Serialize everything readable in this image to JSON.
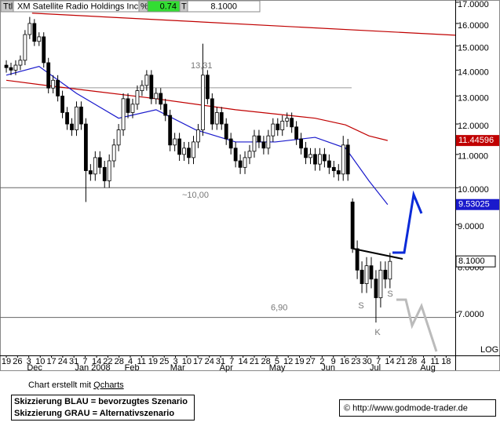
{
  "header": {
    "symbol_tag": "Ttl",
    "name": "XM Satellite Radio Holdings Inc.",
    "pct_tag": "%",
    "pct": 0.74,
    "last_tag": "T"
  },
  "chart_data": {
    "type": "candlestick",
    "log_scale": true,
    "scale_label": "LOG",
    "xlim": [
      -2.7,
      191.9
    ],
    "ylim": [
      6.19,
      17.11
    ],
    "yticks": [
      {
        "value": 7,
        "label": "7.0000"
      },
      {
        "value": 8,
        "label": "8.0000"
      },
      {
        "value": 9,
        "label": "9.0000"
      },
      {
        "value": 10,
        "label": "10.0000"
      },
      {
        "value": 11,
        "label": "11.0000"
      },
      {
        "value": 12,
        "label": "12.0000"
      },
      {
        "value": 13,
        "label": "13.0000"
      },
      {
        "value": 14,
        "label": "14.0000"
      },
      {
        "value": 15,
        "label": "15.0000"
      },
      {
        "value": 16,
        "label": "16.0000"
      },
      {
        "value": 17,
        "label": "17.0000"
      }
    ],
    "xticks": [
      {
        "value": 0,
        "label": "19"
      },
      {
        "value": 4.8,
        "label": "26"
      },
      {
        "value": 9.6,
        "label": "3"
      },
      {
        "value": 14.5,
        "label": "10"
      },
      {
        "value": 19.3,
        "label": "17"
      },
      {
        "value": 24.1,
        "label": "24"
      },
      {
        "value": 28.9,
        "label": "31"
      },
      {
        "value": 33.7,
        "label": "7"
      },
      {
        "value": 38.6,
        "label": "14"
      },
      {
        "value": 43.4,
        "label": "22"
      },
      {
        "value": 48.2,
        "label": "28"
      },
      {
        "value": 53,
        "label": "4"
      },
      {
        "value": 57.8,
        "label": "11"
      },
      {
        "value": 62.7,
        "label": "19"
      },
      {
        "value": 67.5,
        "label": "25"
      },
      {
        "value": 72.3,
        "label": "3"
      },
      {
        "value": 77.1,
        "label": "10"
      },
      {
        "value": 81.9,
        "label": "17"
      },
      {
        "value": 86.8,
        "label": "24"
      },
      {
        "value": 91.6,
        "label": "31"
      },
      {
        "value": 96.4,
        "label": "7"
      },
      {
        "value": 101.2,
        "label": "14"
      },
      {
        "value": 106,
        "label": "21"
      },
      {
        "value": 110.9,
        "label": "28"
      },
      {
        "value": 115.7,
        "label": "5"
      },
      {
        "value": 120.5,
        "label": "12"
      },
      {
        "value": 125.3,
        "label": "19"
      },
      {
        "value": 130.1,
        "label": "27"
      },
      {
        "value": 135,
        "label": "2"
      },
      {
        "value": 139.8,
        "label": "9"
      },
      {
        "value": 144.6,
        "label": "16"
      },
      {
        "value": 149.4,
        "label": "23"
      },
      {
        "value": 154.2,
        "label": "30"
      },
      {
        "value": 159.1,
        "label": "7"
      },
      {
        "value": 163.9,
        "label": "14"
      },
      {
        "value": 168.7,
        "label": "21"
      },
      {
        "value": 173.5,
        "label": "28"
      },
      {
        "value": 178.3,
        "label": "4"
      },
      {
        "value": 183.2,
        "label": "11"
      },
      {
        "value": 188,
        "label": "18"
      }
    ],
    "months": [
      {
        "value": 12.1,
        "label": "Dec"
      },
      {
        "value": 36.9,
        "label": "Jan 2008"
      },
      {
        "value": 53.7,
        "label": "Feb"
      },
      {
        "value": 73.2,
        "label": "Mar"
      },
      {
        "value": 94,
        "label": "Apr"
      },
      {
        "value": 115.8,
        "label": "May"
      },
      {
        "value": 137.6,
        "label": "Jun"
      },
      {
        "value": 157.7,
        "label": "Jul"
      },
      {
        "value": 180.2,
        "label": "Aug"
      }
    ],
    "candles": {
      "x": [
        0,
        2,
        4,
        6,
        8,
        10,
        12,
        14,
        16,
        18,
        20,
        22,
        24,
        26,
        28,
        30,
        32,
        34,
        36,
        38,
        40,
        42,
        44,
        46,
        48,
        50,
        52,
        54,
        56,
        58,
        60,
        62,
        64,
        66,
        68,
        70,
        72,
        74,
        76,
        78,
        80,
        82,
        84,
        86,
        88,
        90,
        92,
        94,
        96,
        98,
        100,
        102,
        104,
        106,
        108,
        110,
        112,
        114,
        116,
        118,
        120,
        122,
        124,
        126,
        128,
        130,
        132,
        134,
        136,
        138,
        140,
        142,
        144,
        146,
        148,
        150,
        152,
        154,
        156,
        158,
        160,
        162,
        164
      ],
      "open": [
        14.2,
        14.1,
        14.0,
        14.2,
        14.4,
        15.5,
        16.0,
        15.2,
        15.4,
        14.3,
        13.3,
        13.6,
        13.0,
        12.4,
        12.0,
        11.8,
        12.6,
        12.0,
        10.5,
        10.4,
        10.9,
        10.6,
        10.2,
        10.8,
        11.3,
        11.8,
        12.9,
        12.4,
        12.7,
        13.2,
        13.4,
        13.8,
        12.9,
        13.1,
        12.7,
        12.3,
        11.3,
        11.5,
        11.0,
        11.2,
        10.9,
        11.4,
        11.8,
        13.8,
        12.9,
        12.0,
        12.4,
        12.0,
        11.5,
        11.2,
        10.8,
        10.6,
        10.9,
        11.1,
        11.6,
        11.4,
        11.2,
        11.6,
        12.0,
        11.8,
        12.1,
        12.2,
        11.9,
        11.5,
        11.2,
        10.9,
        11.0,
        10.7,
        11.0,
        10.8,
        10.6,
        10.5,
        10.4,
        11.3,
        9.6,
        8.4,
        7.9,
        7.6,
        8.0,
        7.7,
        7.3,
        7.9,
        7.7
      ],
      "high": [
        14.4,
        14.3,
        14.4,
        14.6,
        15.7,
        16.3,
        16.2,
        15.6,
        15.6,
        14.5,
        13.8,
        13.8,
        13.2,
        12.6,
        12.2,
        12.8,
        12.8,
        12.2,
        10.7,
        11.1,
        11.1,
        10.8,
        11.0,
        11.5,
        12.0,
        13.1,
        13.1,
        12.9,
        13.4,
        13.6,
        14.0,
        14.0,
        13.3,
        13.3,
        12.9,
        12.5,
        11.7,
        11.7,
        11.4,
        11.4,
        11.6,
        12.0,
        15.1,
        14.0,
        13.1,
        12.6,
        12.6,
        12.2,
        11.7,
        11.4,
        11.0,
        11.1,
        11.3,
        11.8,
        11.8,
        11.6,
        11.8,
        12.2,
        12.2,
        12.3,
        12.4,
        12.4,
        12.1,
        11.7,
        11.4,
        11.2,
        11.2,
        11.2,
        11.2,
        11.0,
        10.8,
        10.7,
        11.6,
        11.5,
        9.7,
        8.6,
        8.1,
        8.2,
        8.2,
        7.9,
        8.1,
        8.1,
        8.3
      ],
      "low": [
        13.9,
        13.8,
        13.8,
        14.0,
        14.2,
        15.3,
        15.0,
        15.0,
        14.1,
        13.1,
        13.1,
        12.8,
        12.2,
        11.8,
        11.6,
        11.6,
        11.8,
        9.6,
        10.2,
        10.2,
        10.4,
        10.0,
        10.0,
        10.6,
        11.1,
        11.6,
        12.2,
        12.2,
        12.5,
        13.0,
        13.2,
        12.7,
        12.7,
        12.5,
        12.1,
        11.1,
        11.1,
        10.8,
        10.8,
        10.7,
        10.7,
        11.2,
        11.6,
        12.7,
        11.8,
        11.8,
        11.8,
        11.3,
        11.0,
        10.6,
        10.4,
        10.4,
        10.7,
        10.9,
        11.2,
        11.0,
        11.0,
        11.4,
        11.6,
        11.6,
        11.9,
        11.7,
        11.3,
        11.0,
        10.7,
        10.7,
        10.5,
        10.5,
        10.6,
        10.4,
        10.3,
        10.2,
        10.2,
        10.2,
        8.3,
        7.7,
        7.4,
        7.4,
        7.5,
        6.8,
        7.1,
        7.5,
        7.5
      ],
      "close": [
        14.1,
        14.0,
        14.2,
        14.4,
        15.5,
        16.0,
        15.2,
        15.4,
        14.3,
        13.3,
        13.6,
        13.0,
        12.4,
        12.0,
        11.8,
        12.6,
        12.0,
        10.5,
        10.4,
        10.9,
        10.6,
        10.2,
        10.8,
        11.3,
        11.8,
        12.9,
        12.4,
        12.7,
        13.2,
        13.4,
        13.8,
        12.9,
        13.1,
        12.7,
        12.3,
        11.3,
        11.5,
        11.0,
        11.2,
        10.9,
        11.4,
        11.8,
        13.8,
        12.9,
        12.0,
        12.4,
        12.0,
        11.5,
        11.2,
        10.8,
        10.6,
        10.9,
        11.1,
        11.6,
        11.4,
        11.2,
        11.6,
        12.0,
        11.8,
        12.1,
        12.2,
        11.9,
        11.5,
        11.2,
        10.9,
        11.0,
        10.7,
        11.0,
        10.8,
        10.6,
        10.5,
        10.4,
        11.3,
        10.4,
        8.4,
        7.9,
        7.6,
        8.0,
        7.7,
        7.3,
        7.9,
        7.7,
        8.1
      ],
      "up_color": "#ffffff",
      "down_color": "#000000"
    },
    "overlays": [
      {
        "color": "#c00000",
        "x": [
          11,
          191.9
        ],
        "values": [
          16.48,
          15.47
        ],
        "show_last": false
      },
      {
        "color": "#c00000",
        "x": [
          0,
          17,
          64,
          98,
          132,
          145,
          155,
          163
        ],
        "values": [
          13.6,
          13.4,
          12.9,
          12.5,
          12.2,
          11.97,
          11.6,
          11.44596
        ],
        "show_last": true
      },
      {
        "color": "#1a1acc",
        "x": [
          0,
          14,
          30,
          48,
          64,
          81,
          98,
          115,
          132,
          145,
          155,
          163
        ],
        "values": [
          13.8,
          14.15,
          13.1,
          12.2,
          12.5,
          11.8,
          11.4,
          11.4,
          11.55,
          11.2,
          10.2,
          9.53025
        ],
        "show_last": true
      }
    ],
    "levels": [
      {
        "value": 13.31,
        "label": "13,31",
        "x": [
          -2.7,
          147.6
        ]
      },
      {
        "value": 10,
        "label": "~10,00",
        "x": [
          -2.7,
          191.9
        ]
      },
      {
        "value": 6.9,
        "label": "6,90",
        "x": [
          -2.7,
          191.9
        ]
      }
    ],
    "annotations": [
      "S",
      "S",
      "K"
    ],
    "last_price": {
      "value": 8.1,
      "label": "8.1000"
    }
  },
  "footer": {
    "credit_prefix": "Chart erstellt mit",
    "credit_link": "Qcharts",
    "legend": [
      "Skizzierung BLAU = bevorzugtes Szenario",
      "Skizzierung GRAU = Alternativszenario"
    ],
    "copyright": "© http://www.godmode-trader.de"
  }
}
